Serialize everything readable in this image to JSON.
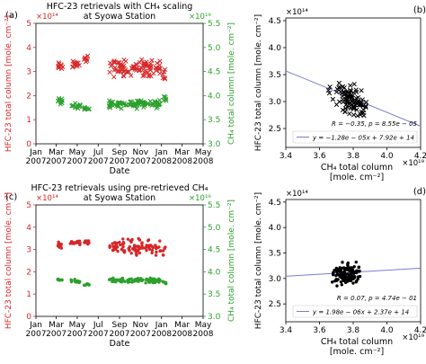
{
  "panel_labels": [
    "(a)",
    "(b)",
    "(c)",
    "(d)"
  ],
  "colors": {
    "red_series": "#d62728",
    "green_series": "#2ca02c",
    "black": "#000000",
    "fit_line": "#7b7bd8"
  },
  "chart_data": [
    {
      "id": "a",
      "type": "scatter",
      "title": "HFC-23 retrievals with CH₄ scaling",
      "subtitle": "at Syowa Station",
      "xlabel": "Date",
      "ylabel_left": "HFC-23 total column [mole. cm⁻²]",
      "ylabel_right": "CH₄ total column [mole. cm⁻²]",
      "exp_left": "×10¹⁴",
      "exp_right": "×10¹⁹",
      "xlim": [
        "2007-01-01",
        "2008-05-01"
      ],
      "x_tick_labels": [
        "Jan\n2007",
        "Mar\n2007",
        "May\n2007",
        "Jul\n2007",
        "Sep\n2007",
        "Nov\n2007",
        "Jan\n2008",
        "Mar\n2008",
        "May\n2008"
      ],
      "ylim_left": [
        0,
        5
      ],
      "y_ticks_left": [
        "0",
        "1",
        "2",
        "3",
        "4",
        "5"
      ],
      "ylim_right": [
        3.0,
        5.5
      ],
      "y_ticks_right": [
        "3.0",
        "3.5",
        "4.0",
        "4.5",
        "5.0",
        "5.5"
      ],
      "marker": "x",
      "series": [
        {
          "color": "red",
          "axis": "left",
          "clusters": [
            {
              "x_start": "2007-03-05",
              "x_end": "2007-03-20",
              "y_center": 3.2,
              "y_spread": 0.25,
              "n": 10
            },
            {
              "x_start": "2007-04-10",
              "x_end": "2007-05-10",
              "y_center": 3.3,
              "y_spread": 0.25,
              "n": 14
            },
            {
              "x_start": "2007-05-20",
              "x_end": "2007-06-05",
              "y_center": 3.5,
              "y_spread": 0.2,
              "n": 8
            },
            {
              "x_start": "2007-08-01",
              "x_end": "2007-12-31",
              "y_center": 3.15,
              "y_spread": 0.5,
              "n": 90
            },
            {
              "x_start": "2008-01-05",
              "x_end": "2008-01-15",
              "y_center": 2.9,
              "y_spread": 0.4,
              "n": 6
            }
          ]
        },
        {
          "color": "green",
          "axis": "right",
          "clusters": [
            {
              "x_start": "2007-03-05",
              "x_end": "2007-03-20",
              "y_center": 3.88,
              "y_spread": 0.1,
              "n": 10
            },
            {
              "x_start": "2007-04-10",
              "x_end": "2007-05-10",
              "y_center": 3.78,
              "y_spread": 0.08,
              "n": 14
            },
            {
              "x_start": "2007-05-20",
              "x_end": "2007-06-05",
              "y_center": 3.72,
              "y_spread": 0.06,
              "n": 8
            },
            {
              "x_start": "2007-08-01",
              "x_end": "2007-12-31",
              "y_center": 3.83,
              "y_spread": 0.12,
              "n": 90
            },
            {
              "x_start": "2008-01-05",
              "x_end": "2008-01-15",
              "y_center": 3.95,
              "y_spread": 0.1,
              "n": 6
            }
          ]
        }
      ]
    },
    {
      "id": "b",
      "type": "scatter",
      "xlabel": "CH₄ total column",
      "xlabel2": "[mole. cm⁻²]",
      "ylabel": "HFC-23 total column [mole. cm⁻²]",
      "exp_x": "×10¹⁹",
      "exp_y": "×10¹⁴",
      "xlim": [
        3.4,
        4.2
      ],
      "x_ticks": [
        "3.4",
        "3.6",
        "3.8",
        "4.0",
        "4.2"
      ],
      "ylim": [
        2.15,
        4.55
      ],
      "y_ticks": [
        "2.5",
        "3.0",
        "3.5",
        "4.0",
        "4.5"
      ],
      "marker": "x",
      "cloud": {
        "x_center": 3.78,
        "x_spread": 0.14,
        "y_center": 3.05,
        "y_spread": 0.38,
        "n": 100,
        "slope": -1.28
      },
      "fit": {
        "slope": -1.28,
        "intercept": 7.92
      },
      "annotation_r": "R = −0.35, p = 8.55e − 05",
      "legend_label": "y = −1.28e − 05x + 7.92e + 14"
    },
    {
      "id": "c",
      "type": "scatter",
      "title": "HFC-23 retrievals using pre-retrieved CH₄",
      "subtitle": "at Syowa Station",
      "xlabel": "Date",
      "ylabel_left": "HFC-23 total column [mole. cm⁻²]",
      "ylabel_right": "CH₄ total column [mole. cm⁻²]",
      "exp_left": "×10¹⁴",
      "exp_right": "×10¹⁹",
      "xlim": [
        "2007-01-01",
        "2008-05-01"
      ],
      "x_tick_labels": [
        "Jan\n2007",
        "Mar\n2007",
        "May\n2007",
        "Jul\n2007",
        "Sep\n2007",
        "Nov\n2007",
        "Jan\n2008",
        "Mar\n2008",
        "May\n2008"
      ],
      "ylim_left": [
        0,
        5
      ],
      "y_ticks_left": [
        "0",
        "1",
        "2",
        "3",
        "4",
        "5"
      ],
      "ylim_right": [
        3.0,
        5.5
      ],
      "y_ticks_right": [
        "3.0",
        "3.5",
        "4.0",
        "4.5",
        "5.0",
        "5.5"
      ],
      "marker": "dot",
      "series": [
        {
          "color": "red",
          "axis": "left",
          "clusters": [
            {
              "x_start": "2007-03-05",
              "x_end": "2007-03-20",
              "y_center": 3.2,
              "y_spread": 0.2,
              "n": 10
            },
            {
              "x_start": "2007-04-10",
              "x_end": "2007-05-10",
              "y_center": 3.3,
              "y_spread": 0.2,
              "n": 14
            },
            {
              "x_start": "2007-05-20",
              "x_end": "2007-06-05",
              "y_center": 3.35,
              "y_spread": 0.15,
              "n": 8
            },
            {
              "x_start": "2007-08-01",
              "x_end": "2007-12-31",
              "y_center": 3.1,
              "y_spread": 0.5,
              "n": 90
            },
            {
              "x_start": "2008-01-05",
              "x_end": "2008-01-15",
              "y_center": 2.9,
              "y_spread": 0.3,
              "n": 6
            }
          ]
        },
        {
          "color": "green",
          "axis": "right",
          "clusters": [
            {
              "x_start": "2007-03-05",
              "x_end": "2007-03-20",
              "y_center": 3.82,
              "y_spread": 0.06,
              "n": 10
            },
            {
              "x_start": "2007-04-10",
              "x_end": "2007-05-10",
              "y_center": 3.78,
              "y_spread": 0.06,
              "n": 14
            },
            {
              "x_start": "2007-05-20",
              "x_end": "2007-06-05",
              "y_center": 3.72,
              "y_spread": 0.05,
              "n": 8
            },
            {
              "x_start": "2007-08-01",
              "x_end": "2007-12-31",
              "y_center": 3.8,
              "y_spread": 0.08,
              "n": 90
            },
            {
              "x_start": "2008-01-05",
              "x_end": "2008-01-15",
              "y_center": 3.75,
              "y_spread": 0.06,
              "n": 6
            }
          ]
        }
      ]
    },
    {
      "id": "d",
      "type": "scatter",
      "xlabel": "CH₄ total column",
      "xlabel2": "[mole. cm⁻²]",
      "ylabel": "HFC-23 total column [mole. cm⁻²]",
      "exp_x": "×10¹⁹",
      "exp_y": "×10¹⁴",
      "xlim": [
        3.4,
        4.2
      ],
      "x_ticks": [
        "3.4",
        "3.6",
        "3.8",
        "4.0",
        "4.2"
      ],
      "ylim": [
        2.15,
        4.55
      ],
      "y_ticks": [
        "2.5",
        "3.0",
        "3.5",
        "4.0",
        "4.5"
      ],
      "marker": "dot",
      "cloud": {
        "x_center": 3.76,
        "x_spread": 0.13,
        "y_center": 3.08,
        "y_spread": 0.3,
        "n": 120,
        "slope": 0.2
      },
      "fit": {
        "slope": 0.198,
        "intercept": 2.37
      },
      "annotation_r": "R = 0.07, p = 4.74e − 01",
      "legend_label": "y = 1.98e − 06x + 2.37e + 14"
    }
  ]
}
